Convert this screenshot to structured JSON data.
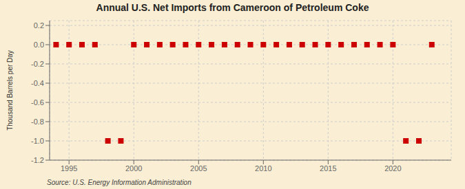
{
  "chart_data": {
    "type": "scatter",
    "title": "Annual U.S. Net Imports from Cameroon of Petroleum Coke",
    "ylabel": "Thousand Barrels per Day",
    "annotations": [
      "Source: U.S. Energy Information Administration"
    ],
    "x": [
      1994,
      1995,
      1996,
      1997,
      1998,
      1999,
      2000,
      2001,
      2002,
      2003,
      2004,
      2005,
      2006,
      2007,
      2008,
      2009,
      2010,
      2011,
      2012,
      2013,
      2014,
      2015,
      2016,
      2017,
      2018,
      2019,
      2020,
      2021,
      2022,
      2023
    ],
    "values": [
      0,
      0,
      0,
      0,
      -1,
      -1,
      0,
      0,
      0,
      0,
      0,
      0,
      0,
      0,
      0,
      0,
      0,
      0,
      0,
      0,
      0,
      0,
      0,
      0,
      0,
      0,
      0,
      -1,
      -1,
      0
    ],
    "color": "#cc0000",
    "marker": "square",
    "xlim": [
      1993.5,
      2024.5
    ],
    "xticks": [
      1995,
      2000,
      2005,
      2010,
      2015,
      2020
    ],
    "ylim": [
      -1.2,
      0.25
    ],
    "yticks": [
      0.2,
      {
        "value": 0.0,
        "label": "0.0"
      },
      -0.2,
      -0.4,
      -0.6,
      -0.8,
      {
        "value": -1.0,
        "label": "-1.0"
      },
      -1.2
    ],
    "grid": true
  }
}
